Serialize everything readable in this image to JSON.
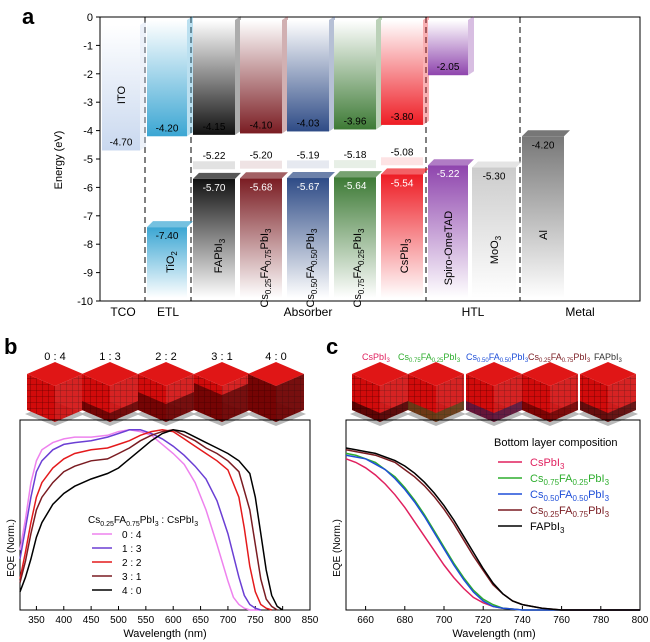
{
  "panels": {
    "a": {
      "label": "a",
      "ylabel": "Energy (eV)",
      "yticks": [
        "0",
        "-1",
        "-2",
        "-3",
        "-4",
        "-5",
        "-6",
        "-7",
        "-8",
        "-9",
        "-10"
      ],
      "sections": [
        "TCO",
        "ETL",
        "Absorber",
        "HTL",
        "Metal"
      ],
      "materials": [
        {
          "name": "ITO",
          "cb": "-4.70",
          "vb": "",
          "color": "#c9d8ef"
        },
        {
          "name": "TiO2",
          "cb": "-4.20",
          "vb": "-7.40",
          "color": "#3ba6d3"
        },
        {
          "name": "FAPbI3",
          "cb": "-4.15",
          "vb": "-5.70",
          "vb_top": "-5.22",
          "color": "#111111"
        },
        {
          "name": "Cs0.25FA0.75PbI3",
          "cb": "-4.10",
          "vb": "-5.68",
          "vb_top": "-5.20",
          "color": "#7a1c22"
        },
        {
          "name": "Cs0.50FA0.50PbI3",
          "cb": "-4.03",
          "vb": "-5.67",
          "vb_top": "-5.19",
          "color": "#2e4b86"
        },
        {
          "name": "Cs0.75FA0.25PbI3",
          "cb": "-3.96",
          "vb": "-5.64",
          "vb_top": "-5.18",
          "color": "#3d7a35"
        },
        {
          "name": "CsPbI3",
          "cb": "-3.80",
          "vb": "-5.54",
          "vb_top": "-5.08",
          "color": "#ee1c24"
        },
        {
          "name": "Spiro-OmeTAD",
          "cb": "-2.05",
          "vb": "-5.22",
          "color": "#8e44ad"
        },
        {
          "name": "MoO3",
          "cb": "",
          "vb": "-5.30",
          "color": "#d9d9d9"
        },
        {
          "name": "Al",
          "cb": "-4.20",
          "vb": "",
          "color": "#888888"
        }
      ],
      "rotated_labels": {
        "ito": "ITO",
        "tio2": "TiO",
        "tio2_sub": "2",
        "fapbi3_main": "FAPbI",
        "fapbi3_sub": "3",
        "cs25": [
          "Cs",
          "0.25",
          "FA",
          "0.75",
          "PbI",
          "3"
        ],
        "cs50": [
          "Cs",
          "0.50",
          "FA",
          "0.50",
          "PbI",
          "3"
        ],
        "cs75": [
          "Cs",
          "0.75",
          "FA",
          "0.25",
          "PbI",
          "3"
        ],
        "cspbi3_main": "CsPbI",
        "cspbi3_sub": "3",
        "spiro": "Spiro-OmeTAD",
        "moo3_main": "MoO",
        "moo3_sub": "3",
        "al": "Al"
      }
    },
    "b": {
      "label": "b",
      "ratios": [
        "0 : 4",
        "1 : 3",
        "2 : 2",
        "3 : 1",
        "4 : 0"
      ],
      "legend_title": [
        "Cs",
        "0.25",
        "FA",
        "0.75",
        "PbI",
        "3",
        " : CsPbI",
        "3"
      ],
      "ylabel": "EQE (Norm.)",
      "xlabel": "Wavelength (nm)"
    },
    "c": {
      "label": "c",
      "cube_labels": [
        {
          "parts": [
            "CsPbI",
            "3"
          ],
          "color": "#e0215f"
        },
        {
          "parts": [
            "Cs",
            "0.75",
            "FA",
            "0.25",
            "PbI",
            "3"
          ],
          "color": "#2fae2f"
        },
        {
          "parts": [
            "Cs",
            "0.50",
            "FA",
            "0.50",
            "PbI",
            "3"
          ],
          "color": "#1f4fd8"
        },
        {
          "parts": [
            "Cs",
            "0.25",
            "FA",
            "0.75",
            "PbI",
            "3"
          ],
          "color": "#7a1c22"
        },
        {
          "parts": [
            "FAPbI",
            "3"
          ],
          "color": "#333333"
        }
      ],
      "legend_title": "Bottom layer composition",
      "ylabel": "EQE (Norm.)",
      "xlabel": "Wavelength (nm)"
    }
  },
  "chart_data": [
    {
      "type": "bar",
      "title": "",
      "ylabel": "Energy (eV)",
      "ylim": [
        -10,
        0
      ],
      "categories": [
        "ITO",
        "TiO2",
        "FAPbI3",
        "Cs0.25FA0.75PbI3",
        "Cs0.50FA0.50PbI3",
        "Cs0.75FA0.25PbI3",
        "CsPbI3",
        "Spiro-OmeTAD",
        "MoO3",
        "Al"
      ],
      "series": [
        {
          "name": "CB",
          "values": [
            -4.7,
            -4.2,
            -4.15,
            -4.1,
            -4.03,
            -3.96,
            -3.8,
            -2.05,
            null,
            -4.2
          ]
        },
        {
          "name": "VB",
          "values": [
            null,
            -7.4,
            -5.7,
            -5.68,
            -5.67,
            -5.64,
            -5.54,
            -5.22,
            -5.3,
            null
          ]
        },
        {
          "name": "VB (top layer)",
          "values": [
            null,
            null,
            -5.22,
            -5.2,
            -5.19,
            -5.18,
            -5.08,
            null,
            null,
            null
          ]
        }
      ],
      "legend": "none"
    },
    {
      "type": "line",
      "xlabel": "Wavelength (nm)",
      "ylabel": "EQE (Norm.)",
      "xlim": [
        320,
        850
      ],
      "xticks": [
        350,
        400,
        450,
        500,
        550,
        600,
        650,
        700,
        750,
        800,
        850
      ],
      "legend": "center",
      "series": [
        {
          "name": "0 : 4",
          "color": "#ee82ee",
          "x": [
            320,
            330,
            340,
            350,
            360,
            380,
            400,
            420,
            450,
            480,
            500,
            520,
            540,
            560,
            580,
            600,
            620,
            640,
            660,
            680,
            700,
            710,
            720,
            730,
            740,
            750,
            760
          ],
          "y": [
            0.33,
            0.5,
            0.7,
            0.82,
            0.88,
            0.92,
            0.94,
            0.95,
            0.95,
            0.96,
            0.98,
            0.99,
            0.98,
            0.96,
            0.91,
            0.86,
            0.8,
            0.7,
            0.55,
            0.36,
            0.16,
            0.07,
            0.03,
            0.01,
            0.0,
            0.0,
            0.0
          ]
        },
        {
          "name": "1 : 3",
          "color": "#6b3fd4",
          "x": [
            320,
            330,
            340,
            350,
            360,
            380,
            400,
            420,
            450,
            480,
            500,
            520,
            540,
            560,
            580,
            600,
            620,
            640,
            660,
            680,
            700,
            720,
            730,
            740,
            750,
            760
          ],
          "y": [
            0.28,
            0.45,
            0.62,
            0.76,
            0.82,
            0.88,
            0.91,
            0.92,
            0.93,
            0.95,
            0.97,
            0.99,
            0.99,
            0.97,
            0.94,
            0.9,
            0.85,
            0.79,
            0.72,
            0.6,
            0.42,
            0.18,
            0.08,
            0.03,
            0.01,
            0.0
          ]
        },
        {
          "name": "2 : 2",
          "color": "#e41a1c",
          "x": [
            320,
            330,
            340,
            350,
            360,
            380,
            400,
            420,
            450,
            480,
            500,
            520,
            540,
            560,
            580,
            600,
            620,
            640,
            660,
            680,
            700,
            720,
            730,
            740,
            750,
            760,
            770,
            780
          ],
          "y": [
            0.17,
            0.32,
            0.48,
            0.62,
            0.7,
            0.78,
            0.83,
            0.86,
            0.88,
            0.89,
            0.91,
            0.93,
            0.96,
            0.98,
            0.99,
            0.98,
            0.94,
            0.9,
            0.86,
            0.82,
            0.77,
            0.62,
            0.45,
            0.24,
            0.1,
            0.03,
            0.01,
            0.0
          ]
        },
        {
          "name": "3 : 1",
          "color": "#7a1c22",
          "x": [
            320,
            330,
            340,
            350,
            360,
            380,
            400,
            420,
            450,
            480,
            500,
            520,
            540,
            560,
            580,
            600,
            620,
            640,
            660,
            680,
            700,
            720,
            740,
            750,
            760,
            770,
            780,
            790
          ],
          "y": [
            0.15,
            0.27,
            0.42,
            0.55,
            0.62,
            0.7,
            0.76,
            0.79,
            0.82,
            0.83,
            0.86,
            0.89,
            0.93,
            0.96,
            0.98,
            0.99,
            0.96,
            0.93,
            0.89,
            0.86,
            0.82,
            0.76,
            0.55,
            0.36,
            0.17,
            0.06,
            0.02,
            0.0
          ]
        },
        {
          "name": "4 : 0",
          "color": "#000000",
          "x": [
            320,
            330,
            340,
            350,
            360,
            380,
            400,
            420,
            450,
            480,
            500,
            520,
            540,
            560,
            580,
            600,
            620,
            640,
            660,
            680,
            700,
            720,
            740,
            750,
            760,
            770,
            780,
            790,
            800
          ],
          "y": [
            0.1,
            0.18,
            0.28,
            0.4,
            0.48,
            0.58,
            0.64,
            0.68,
            0.72,
            0.75,
            0.78,
            0.83,
            0.88,
            0.93,
            0.97,
            0.99,
            0.98,
            0.95,
            0.92,
            0.89,
            0.86,
            0.82,
            0.75,
            0.62,
            0.42,
            0.22,
            0.08,
            0.02,
            0.0
          ]
        }
      ]
    },
    {
      "type": "line",
      "xlabel": "Wavelength (nm)",
      "ylabel": "EQE (Norm.)",
      "xlim": [
        650,
        800
      ],
      "xticks": [
        660,
        680,
        700,
        720,
        740,
        760,
        780,
        800
      ],
      "legend": "top-right",
      "series": [
        {
          "name": "CsPbI3",
          "color": "#e0215f",
          "x": [
            650,
            655,
            660,
            665,
            670,
            675,
            680,
            685,
            690,
            695,
            700,
            705,
            710,
            715,
            720,
            725,
            730,
            740,
            750,
            760,
            780,
            800
          ],
          "y": [
            0.84,
            0.82,
            0.79,
            0.75,
            0.7,
            0.64,
            0.57,
            0.49,
            0.41,
            0.33,
            0.25,
            0.18,
            0.12,
            0.07,
            0.04,
            0.02,
            0.01,
            0.0,
            0.0,
            0.0,
            0.0,
            0.0
          ]
        },
        {
          "name": "Cs0.75FA0.25PbI3",
          "color": "#2fae2f",
          "x": [
            650,
            655,
            660,
            665,
            670,
            675,
            680,
            685,
            690,
            695,
            700,
            705,
            710,
            715,
            720,
            725,
            730,
            740,
            750,
            760,
            780,
            800
          ],
          "y": [
            0.87,
            0.86,
            0.84,
            0.82,
            0.78,
            0.74,
            0.68,
            0.61,
            0.53,
            0.44,
            0.35,
            0.26,
            0.18,
            0.11,
            0.06,
            0.03,
            0.01,
            0.0,
            0.0,
            0.0,
            0.0,
            0.0
          ]
        },
        {
          "name": "Cs0.50FA0.50PbI3",
          "color": "#1f4fd8",
          "x": [
            650,
            655,
            660,
            665,
            670,
            675,
            680,
            685,
            690,
            695,
            700,
            705,
            710,
            715,
            720,
            725,
            730,
            740,
            750,
            760,
            780,
            800
          ],
          "y": [
            0.86,
            0.85,
            0.84,
            0.81,
            0.78,
            0.73,
            0.67,
            0.6,
            0.52,
            0.43,
            0.34,
            0.25,
            0.17,
            0.1,
            0.05,
            0.02,
            0.01,
            0.0,
            0.0,
            0.0,
            0.0,
            0.0
          ]
        },
        {
          "name": "Cs0.25FA0.75PbI3",
          "color": "#7a1c22",
          "x": [
            650,
            655,
            660,
            665,
            670,
            675,
            680,
            685,
            690,
            695,
            700,
            705,
            710,
            715,
            720,
            725,
            730,
            735,
            740,
            750,
            760,
            780,
            800
          ],
          "y": [
            0.89,
            0.88,
            0.87,
            0.86,
            0.84,
            0.82,
            0.78,
            0.74,
            0.69,
            0.63,
            0.56,
            0.48,
            0.39,
            0.3,
            0.22,
            0.14,
            0.09,
            0.05,
            0.03,
            0.01,
            0.0,
            0.0,
            0.0
          ]
        },
        {
          "name": "FAPbI3",
          "color": "#000000",
          "x": [
            650,
            655,
            660,
            665,
            670,
            675,
            680,
            685,
            690,
            695,
            700,
            705,
            710,
            715,
            720,
            725,
            730,
            735,
            740,
            750,
            760,
            780,
            800
          ],
          "y": [
            0.9,
            0.89,
            0.88,
            0.87,
            0.85,
            0.83,
            0.8,
            0.76,
            0.71,
            0.65,
            0.58,
            0.5,
            0.41,
            0.32,
            0.23,
            0.15,
            0.09,
            0.05,
            0.03,
            0.01,
            0.0,
            0.0,
            0.0
          ]
        }
      ]
    }
  ]
}
